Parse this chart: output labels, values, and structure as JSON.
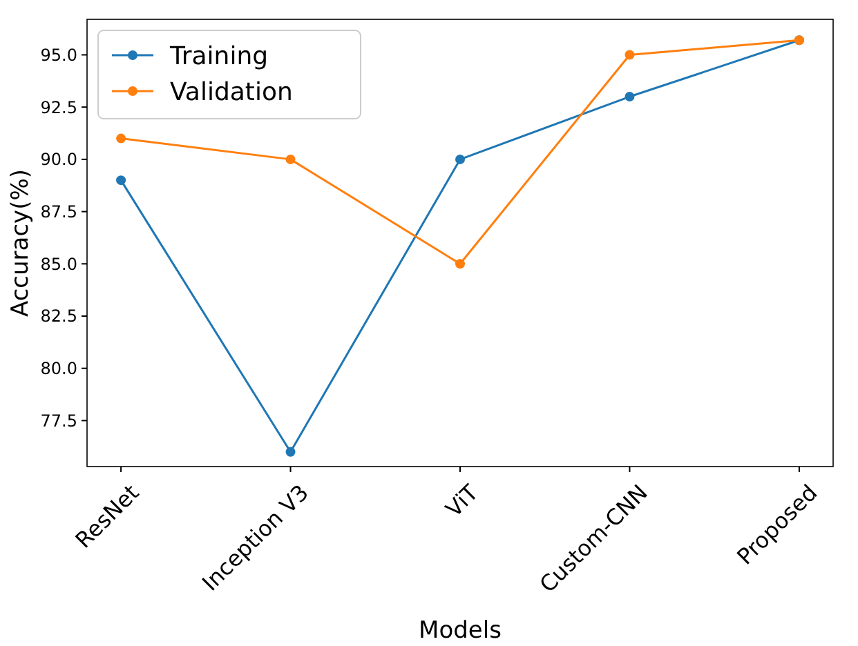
{
  "chart_data": {
    "type": "line",
    "xlabel": "Models",
    "ylabel": "Accuracy(%)",
    "categories": [
      "ResNet",
      "Inception V3",
      "ViT",
      "Custom-CNN",
      "Proposed"
    ],
    "series": [
      {
        "name": "Training",
        "color": "#1f77b4",
        "values": [
          89,
          76,
          90,
          93,
          95.7
        ]
      },
      {
        "name": "Validation",
        "color": "#ff7f0e",
        "values": [
          91,
          90,
          85,
          95,
          95.7
        ]
      }
    ],
    "ylim": [
      75.3,
      96.7
    ],
    "yticks": [
      {
        "value": 77.5,
        "label": "77.5"
      },
      {
        "value": 80,
        "label": "80.0"
      },
      {
        "value": 82.5,
        "label": "82.5"
      },
      {
        "value": 85,
        "label": "85.0"
      },
      {
        "value": 87.5,
        "label": "87.5"
      },
      {
        "value": 90,
        "label": "90.0"
      },
      {
        "value": 92.5,
        "label": "92.5"
      },
      {
        "value": 95,
        "label": "95.0"
      }
    ],
    "marker": "circle",
    "line_style": "solid",
    "legend": "top left",
    "grid": false
  }
}
